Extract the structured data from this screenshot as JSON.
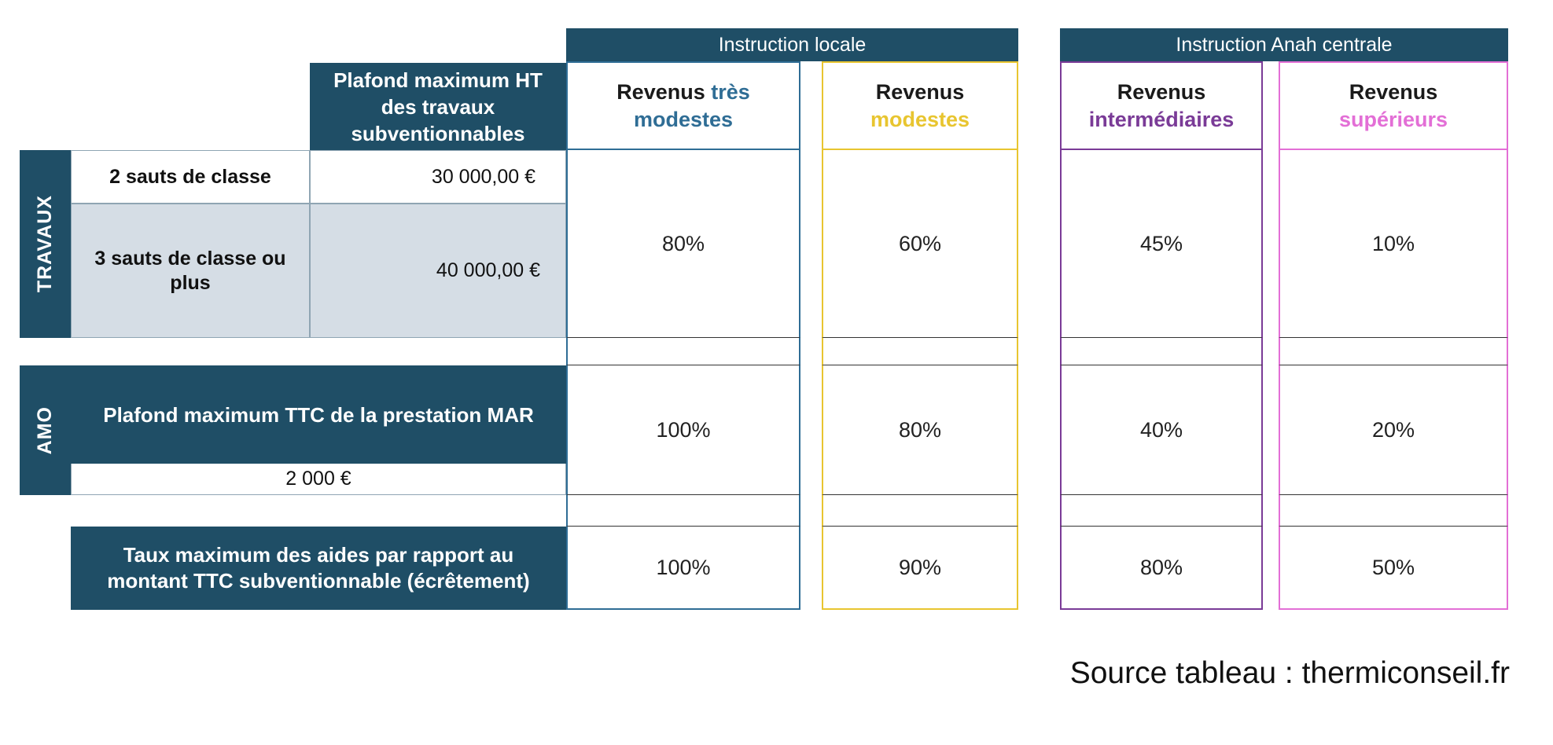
{
  "groups": {
    "locale": "Instruction locale",
    "centrale": "Instruction Anah centrale"
  },
  "header": {
    "plafond_travaux": "Plafond maximum HT des travaux subventionnables",
    "revenus_word": "Revenus",
    "col1_colored": "très modestes",
    "col2_colored": "modestes",
    "col3_colored": "intermédiaires",
    "col4_colored": "supérieurs"
  },
  "colors": {
    "navy": "#1f4e66",
    "tres_modestes": "#2f6d95",
    "modestes": "#e8c530",
    "intermediaires": "#7a3b97",
    "superieurs": "#e36fd6"
  },
  "travaux": {
    "section_label": "TRAVAUX",
    "row1_label": "2 sauts de classe",
    "row1_amount": "30 000,00 €",
    "row2_label": "3 sauts de classe ou plus",
    "row2_amount": "40 000,00 €",
    "rates": [
      "80%",
      "60%",
      "45%",
      "10%"
    ]
  },
  "amo": {
    "section_label": "AMO",
    "label": "Plafond maximum TTC de la prestation MAR",
    "amount": "2 000 €",
    "rates": [
      "100%",
      "80%",
      "40%",
      "20%"
    ]
  },
  "ecretement": {
    "label": "Taux maximum des aides par rapport au montant TTC subventionnable (écrêtement)",
    "rates": [
      "100%",
      "90%",
      "80%",
      "50%"
    ]
  },
  "source": "Source tableau : thermiconseil.fr"
}
